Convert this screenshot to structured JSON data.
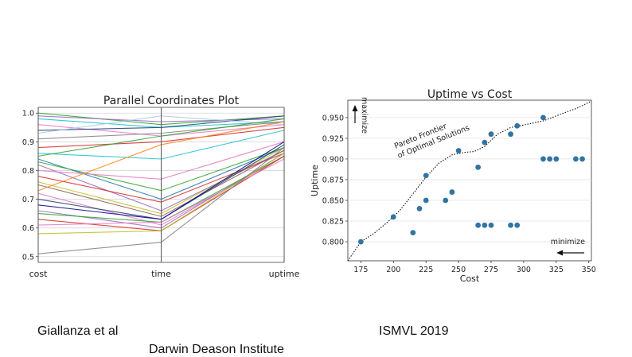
{
  "footer": {
    "left": "Giallanza et al",
    "venue": "ISMVL 2019",
    "institute": "Darwin Deason Institute"
  },
  "chart_data": [
    {
      "type": "parallel_coordinates",
      "title": "Parallel Coordinates Plot",
      "axes": [
        "cost",
        "time",
        "uptime"
      ],
      "ylim": [
        0.48,
        1.02
      ],
      "yticks": [
        "0.5",
        "0.6",
        "0.7",
        "0.8",
        "0.9",
        "1.0"
      ],
      "grid": true,
      "series": [
        {
          "values": [
            1.0,
            0.96,
            0.99
          ],
          "color": "#2ca02c"
        },
        {
          "values": [
            0.99,
            0.97,
            0.98
          ],
          "color": "#9467bd"
        },
        {
          "values": [
            0.98,
            0.95,
            0.97
          ],
          "color": "#17becf"
        },
        {
          "values": [
            0.96,
            0.92,
            0.96
          ],
          "color": "#e377c2"
        },
        {
          "values": [
            0.94,
            0.95,
            0.99
          ],
          "color": "#1f3b73"
        },
        {
          "values": [
            0.93,
            0.99,
            0.96
          ],
          "color": "#aec7e8"
        },
        {
          "values": [
            0.91,
            0.93,
            0.97
          ],
          "color": "#7f7f7f"
        },
        {
          "values": [
            0.88,
            0.9,
            0.95
          ],
          "color": "#d62728"
        },
        {
          "values": [
            0.86,
            0.84,
            0.94
          ],
          "color": "#17becf"
        },
        {
          "values": [
            0.85,
            0.92,
            0.98
          ],
          "color": "#2ca02c"
        },
        {
          "values": [
            0.84,
            0.7,
            0.88
          ],
          "color": "#1f77b4"
        },
        {
          "values": [
            0.83,
            0.73,
            0.88
          ],
          "color": "#2ca02c"
        },
        {
          "values": [
            0.82,
            0.66,
            0.87
          ],
          "color": "#9467bd"
        },
        {
          "values": [
            0.8,
            0.77,
            0.9
          ],
          "color": "#e377c2"
        },
        {
          "values": [
            0.78,
            0.69,
            0.86
          ],
          "color": "#d62728"
        },
        {
          "values": [
            0.76,
            0.65,
            0.88
          ],
          "color": "#bcbd22"
        },
        {
          "values": [
            0.75,
            0.64,
            0.87
          ],
          "color": "#8c564b"
        },
        {
          "values": [
            0.73,
            0.89,
            0.97
          ],
          "color": "#ff7f0e"
        },
        {
          "values": [
            0.72,
            0.61,
            0.85
          ],
          "color": "#e377c2"
        },
        {
          "values": [
            0.7,
            0.63,
            0.89
          ],
          "color": "#1f3b73"
        },
        {
          "values": [
            0.68,
            0.63,
            0.9
          ],
          "color": "#000080"
        },
        {
          "values": [
            0.66,
            0.6,
            0.86
          ],
          "color": "#9467bd"
        },
        {
          "values": [
            0.65,
            0.62,
            0.85
          ],
          "color": "#2ca02c"
        },
        {
          "values": [
            0.63,
            0.59,
            0.85
          ],
          "color": "#d62728"
        },
        {
          "values": [
            0.61,
            0.62,
            0.84
          ],
          "color": "#e377c2"
        },
        {
          "values": [
            0.58,
            0.59,
            0.86
          ],
          "color": "#bcbd22"
        },
        {
          "values": [
            0.51,
            0.55,
            0.88
          ],
          "color": "#7f7f7f"
        }
      ]
    },
    {
      "type": "scatter",
      "title": "Uptime vs Cost",
      "xlabel": "Cost",
      "ylabel": "Uptime",
      "xlim": [
        165,
        352
      ],
      "ylim": [
        0.777,
        0.971
      ],
      "xticks": [
        175,
        200,
        225,
        250,
        275,
        300,
        325,
        350
      ],
      "yticks": [
        "0.800",
        "0.825",
        "0.850",
        "0.875",
        "0.900",
        "0.925",
        "0.950"
      ],
      "marker_color": "#3274a1",
      "points": [
        [
          175,
          0.8
        ],
        [
          200,
          0.83
        ],
        [
          215,
          0.811
        ],
        [
          220,
          0.84
        ],
        [
          225,
          0.88
        ],
        [
          225,
          0.85
        ],
        [
          240,
          0.85
        ],
        [
          245,
          0.86
        ],
        [
          250,
          0.91
        ],
        [
          265,
          0.89
        ],
        [
          265,
          0.82
        ],
        [
          270,
          0.92
        ],
        [
          270,
          0.82
        ],
        [
          275,
          0.93
        ],
        [
          275,
          0.82
        ],
        [
          290,
          0.93
        ],
        [
          290,
          0.82
        ],
        [
          295,
          0.94
        ],
        [
          295,
          0.82
        ],
        [
          315,
          0.95
        ],
        [
          315,
          0.9
        ],
        [
          320,
          0.9
        ],
        [
          325,
          0.9
        ],
        [
          340,
          0.9
        ],
        [
          345,
          0.9
        ]
      ],
      "frontier_label_line1": "Pareto Frontier",
      "frontier_label_line2": "of Optimal Solutions",
      "frontier": [
        [
          165,
          0.777
        ],
        [
          175,
          0.8
        ],
        [
          185,
          0.81
        ],
        [
          195,
          0.823
        ],
        [
          205,
          0.838
        ],
        [
          215,
          0.858
        ],
        [
          225,
          0.878
        ],
        [
          235,
          0.895
        ],
        [
          245,
          0.905
        ],
        [
          255,
          0.908
        ],
        [
          262,
          0.909
        ],
        [
          270,
          0.915
        ],
        [
          280,
          0.93
        ],
        [
          290,
          0.938
        ],
        [
          300,
          0.941
        ],
        [
          315,
          0.946
        ],
        [
          330,
          0.955
        ],
        [
          342,
          0.962
        ],
        [
          352,
          0.97
        ]
      ],
      "maximize_label": "maximize",
      "minimize_label": "minimize"
    }
  ]
}
